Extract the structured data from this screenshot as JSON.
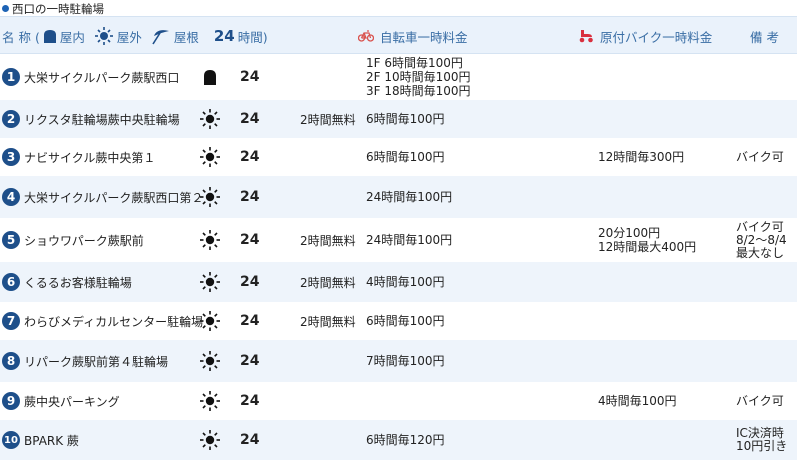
{
  "section_title": "西口の一時駐輪場",
  "header": {
    "name": "名 称 (",
    "indoor": "屋内",
    "outdoor": "屋外",
    "roof": "屋根",
    "h24": "24",
    "h24_suffix": "時間)",
    "bike_fee": "自転車一時料金",
    "moto_fee": "原付バイク一時料金",
    "remarks": "備 考"
  },
  "colors": {
    "accent": "#1e4f8a",
    "header_bg": "#eaf2fb",
    "row_alt": "#eef4fb",
    "bike_icon": "#d9534f",
    "moto_icon": "#d9303f"
  },
  "rows": [
    {
      "num": "1",
      "name": "大栄サイクルパーク蕨駅西口",
      "type": "indoor",
      "hours": "24",
      "free": "",
      "bike": [
        "1F 6時間毎100円",
        "2F 10時間毎100円",
        "3F 18時間毎100円"
      ],
      "moto": [],
      "remarks": []
    },
    {
      "num": "2",
      "name": "リクスタ駐輪場蕨中央駐輪場",
      "type": "outdoor",
      "hours": "24",
      "free": "2時間無料",
      "bike": [
        "6時間毎100円"
      ],
      "moto": [],
      "remarks": []
    },
    {
      "num": "3",
      "name": "ナビサイクル蕨中央第１",
      "type": "outdoor",
      "hours": "24",
      "free": "",
      "bike": [
        "6時間毎100円"
      ],
      "moto": [
        "12時間毎300円"
      ],
      "remarks": [
        "バイク可"
      ]
    },
    {
      "num": "4",
      "name": "大栄サイクルパーク蕨駅西口第２",
      "type": "outdoor",
      "hours": "24",
      "free": "",
      "bike": [
        "24時間毎100円"
      ],
      "moto": [],
      "remarks": []
    },
    {
      "num": "5",
      "name": "ショウワパーク蕨駅前",
      "type": "outdoor",
      "hours": "24",
      "free": "2時間無料",
      "bike": [
        "24時間毎100円"
      ],
      "moto": [
        "20分100円",
        "12時間最大400円"
      ],
      "remarks": [
        "バイク可",
        "8/2～8/4",
        "最大なし"
      ]
    },
    {
      "num": "6",
      "name": "くるるお客様駐輪場",
      "type": "outdoor",
      "hours": "24",
      "free": "2時間無料",
      "bike": [
        "4時間毎100円"
      ],
      "moto": [],
      "remarks": []
    },
    {
      "num": "7",
      "name": "わらびメディカルセンター駐輪場",
      "type": "outdoor",
      "hours": "24",
      "free": "2時間無料",
      "bike": [
        "6時間毎100円"
      ],
      "moto": [],
      "remarks": []
    },
    {
      "num": "8",
      "name": "リパーク蕨駅前第４駐輪場",
      "type": "outdoor",
      "hours": "24",
      "free": "",
      "bike": [
        "7時間毎100円"
      ],
      "moto": [],
      "remarks": []
    },
    {
      "num": "9",
      "name": "蕨中央パーキング",
      "type": "outdoor",
      "hours": "24",
      "free": "",
      "bike": [],
      "moto": [
        "4時間毎100円"
      ],
      "remarks": [
        "バイク可"
      ]
    },
    {
      "num": "10",
      "name": "BPARK 蕨",
      "type": "outdoor",
      "hours": "24",
      "free": "",
      "bike": [
        "6時間毎120円"
      ],
      "moto": [],
      "remarks": [
        "IC決済時",
        "10円引き"
      ]
    }
  ]
}
